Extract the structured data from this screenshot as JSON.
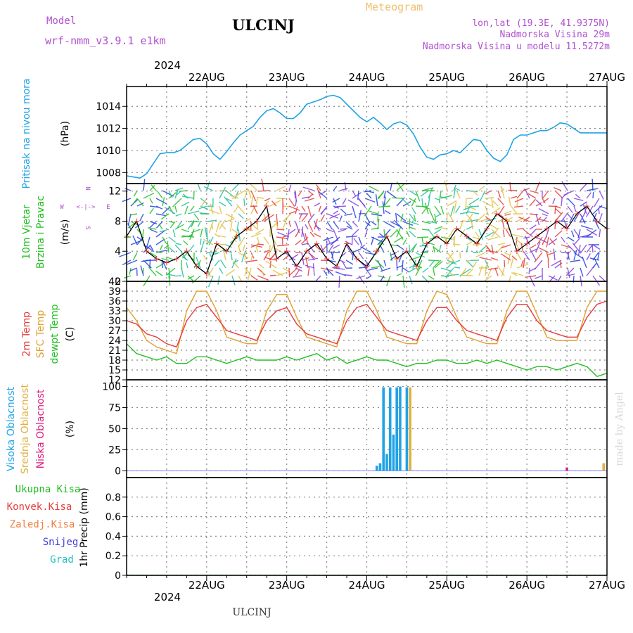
{
  "header": {
    "model_label": "Model",
    "model_name": "wrf-nmm_v3.9.1  e1km",
    "station": "ULCINJ",
    "chart_title": "Meteogram",
    "lonlat": "lon,lat (19.3E, 41.9375N)",
    "elevation": "Nadmorska Visina 29m",
    "model_elevation": "Nadmorska Visina u modelu 11.5272m",
    "year": "2024",
    "footer_station": "ULCINJ",
    "watermark": "made by Angel"
  },
  "colors": {
    "pressure": "#1fa3e6",
    "wind_label": "#22c022",
    "temp2m": "#e83a3a",
    "sfc": "#e0a030",
    "dewpt": "#22c022",
    "high_cloud": "#1fa3e6",
    "mid_cloud": "#e0b040",
    "low_cloud": "#e0207f",
    "purple": "#b050d0",
    "black": "#000000"
  },
  "x_axis": {
    "ticks": [
      "22AUG",
      "23AUG",
      "24AUG",
      "25AUG",
      "26AUG",
      "27AUG"
    ],
    "hours_range": [
      -12,
      132
    ]
  },
  "chart_data": [
    {
      "type": "line",
      "panel": "pressure",
      "ylabel": "Pritisak na nivou mora",
      "unit": "(hPa)",
      "ylim": [
        1007,
        1015.8
      ],
      "yticks": [
        1008,
        1010,
        1012,
        1014
      ],
      "grid": true,
      "x_hours": [
        -12,
        -10,
        -8,
        -6,
        -4,
        -2,
        0,
        2,
        4,
        6,
        8,
        10,
        12,
        14,
        16,
        18,
        20,
        22,
        24,
        26,
        28,
        30,
        32,
        34,
        36,
        38,
        40,
        42,
        44,
        46,
        48,
        50,
        52,
        54,
        56,
        58,
        60,
        62,
        64,
        66,
        68,
        70,
        72,
        74,
        76,
        78,
        80,
        82,
        84,
        86,
        88,
        90,
        92,
        94,
        96,
        98,
        100,
        102,
        104,
        106,
        108,
        110,
        112,
        114,
        116,
        118,
        120,
        122,
        124,
        126,
        128,
        130,
        132
      ],
      "series": [
        {
          "values": [
            1007.7,
            1007.6,
            1007.5,
            1007.9,
            1008.8,
            1009.7,
            1009.8,
            1009.8,
            1010.0,
            1010.5,
            1011.0,
            1011.1,
            1010.6,
            1009.7,
            1009.2,
            1009.9,
            1010.7,
            1011.4,
            1011.8,
            1012.2,
            1013.0,
            1013.6,
            1013.8,
            1013.4,
            1012.9,
            1012.9,
            1013.4,
            1014.2,
            1014.4,
            1014.6,
            1014.9,
            1015.0,
            1014.8,
            1014.2,
            1013.6,
            1013.0,
            1012.6,
            1013.0,
            1012.5,
            1011.9,
            1012.4,
            1012.6,
            1012.3,
            1011.5,
            1010.3,
            1009.4,
            1009.2,
            1009.6,
            1009.7,
            1010.0,
            1009.8,
            1010.4,
            1011.0,
            1010.9,
            1010.0,
            1009.3,
            1009.0,
            1009.6,
            1011.0,
            1011.4,
            1011.4,
            1011.6,
            1011.8,
            1011.8,
            1012.1,
            1012.5,
            1012.4,
            1012.0,
            1011.6,
            1011.6,
            1011.6,
            1011.6,
            1011.6
          ]
        }
      ]
    },
    {
      "type": "line",
      "panel": "wind",
      "ylabel": "10m Vjetar Brzina i Pravac",
      "unit": "(m/s)",
      "compass": [
        "N",
        "W",
        "E",
        "S"
      ],
      "ylim": [
        0,
        13
      ],
      "yticks": [
        0,
        4,
        8,
        12
      ],
      "grid": true,
      "x_hours": [
        -12,
        -9,
        -6,
        -3,
        0,
        3,
        6,
        9,
        12,
        15,
        18,
        21,
        24,
        27,
        30,
        33,
        36,
        39,
        42,
        45,
        48,
        51,
        54,
        57,
        60,
        63,
        66,
        69,
        72,
        75,
        78,
        81,
        84,
        87,
        90,
        93,
        96,
        99,
        102,
        105,
        108,
        111,
        114,
        117,
        120,
        123,
        126,
        129,
        132
      ],
      "series": [
        {
          "name": "speed",
          "values": [
            6,
            8,
            4,
            3,
            2.5,
            3,
            4,
            2,
            1,
            5,
            4,
            6,
            7,
            8,
            10,
            3,
            4,
            2,
            4,
            5,
            3,
            2,
            5,
            3,
            2,
            4,
            6,
            3,
            4,
            2,
            5,
            6,
            5,
            7,
            6,
            5,
            7,
            9,
            8,
            4,
            5,
            6,
            7,
            8,
            7,
            9,
            10,
            8,
            7
          ]
        }
      ]
    },
    {
      "type": "line",
      "panel": "temperature",
      "ylabels": [
        "2m Temp",
        "SFC Temp",
        "dewpt Temp"
      ],
      "unit": "(C)",
      "ylim": [
        12,
        42
      ],
      "yticks": [
        12,
        15,
        18,
        21,
        24,
        27,
        30,
        33,
        36,
        39,
        42
      ],
      "grid": true,
      "x_hours": [
        -12,
        -9,
        -6,
        -3,
        0,
        3,
        6,
        9,
        12,
        15,
        18,
        21,
        24,
        27,
        30,
        33,
        36,
        39,
        42,
        45,
        48,
        51,
        54,
        57,
        60,
        63,
        66,
        69,
        72,
        75,
        78,
        81,
        84,
        87,
        90,
        93,
        96,
        99,
        102,
        105,
        108,
        111,
        114,
        117,
        120,
        123,
        126,
        129,
        132
      ],
      "series": [
        {
          "name": "2m Temp",
          "values": [
            30,
            29,
            26,
            25,
            23,
            22,
            30,
            34,
            35,
            31,
            27,
            26,
            25,
            24,
            30,
            33,
            34,
            29,
            26,
            25,
            24,
            23,
            30,
            34,
            35,
            31,
            27,
            26,
            25,
            24,
            30,
            34,
            34,
            30,
            27,
            26,
            25,
            24,
            31,
            35,
            35,
            30,
            27,
            26,
            25,
            25,
            31,
            35,
            36
          ]
        },
        {
          "name": "SFC Temp",
          "values": [
            34,
            30,
            24,
            22,
            21,
            20,
            33,
            39,
            39,
            33,
            25,
            24,
            23,
            23,
            33,
            38,
            38,
            31,
            25,
            24,
            23,
            22,
            33,
            39,
            39,
            33,
            25,
            24,
            23,
            23,
            33,
            39,
            38,
            31,
            25,
            24,
            23,
            23,
            33,
            39,
            39,
            32,
            25,
            24,
            24,
            24,
            34,
            39,
            39
          ]
        },
        {
          "name": "dewpt Temp",
          "values": [
            23,
            20,
            19,
            18,
            19,
            17,
            17,
            19,
            19,
            18,
            17,
            18,
            19,
            18,
            18,
            18,
            19,
            18,
            19,
            20,
            18,
            19,
            17,
            18,
            19,
            18,
            18,
            17,
            16,
            17,
            17,
            18,
            18,
            17,
            17,
            18,
            17,
            18,
            17,
            16,
            15,
            16,
            16,
            15,
            16,
            17,
            16,
            13,
            14
          ]
        }
      ]
    },
    {
      "type": "bar",
      "panel": "cloud",
      "ylabels": [
        "Visoka Oblacnost",
        "Srednja Oblacnost",
        "Niska Oblacnost"
      ],
      "unit": "(%)",
      "ylim": [
        -8,
        108
      ],
      "yticks": [
        0,
        25,
        50,
        75,
        100
      ],
      "grid": true,
      "series": [
        {
          "name": "Visoka Oblacnost",
          "bars": [
            [
              63,
              6
            ],
            [
              64,
              9
            ],
            [
              65,
              99
            ],
            [
              66,
              20
            ],
            [
              67,
              99
            ],
            [
              68,
              43
            ],
            [
              69,
              99
            ],
            [
              70,
              100
            ],
            [
              72,
              99
            ]
          ]
        },
        {
          "name": "Srednja Oblacnost",
          "bars": [
            [
              73,
              99
            ],
            [
              131,
              9
            ]
          ]
        },
        {
          "name": "Niska Oblacnost",
          "bars": [
            [
              120,
              4
            ]
          ]
        }
      ]
    },
    {
      "type": "line",
      "panel": "precip",
      "ylabels": [
        "Ukupna Kisa",
        "Konvek.Kisa",
        "Zaledj.Kisa",
        "Snijeg",
        "Grad"
      ],
      "unit": "1hr Precip (mm)",
      "ylim": [
        0,
        1
      ],
      "yticks": [
        0,
        0.2,
        0.4,
        0.6,
        0.8
      ],
      "grid": true,
      "series": [
        {
          "name": "Ukupna Kisa",
          "values": [
            0
          ]
        }
      ]
    }
  ]
}
